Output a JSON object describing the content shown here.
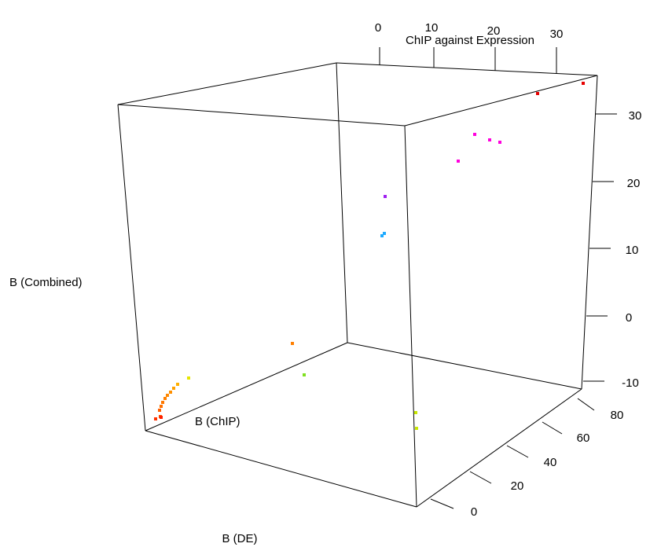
{
  "chart_data": {
    "type": "scatter",
    "title": "ChIP against Expression",
    "xlabel": "B (DE)",
    "ylabel": "B (Combined)",
    "zlabel": "B (ChIP)",
    "top_axis": {
      "ticks": [
        "0",
        "10",
        "20",
        "30"
      ]
    },
    "right_axis": {
      "ticks": [
        "30",
        "20",
        "10",
        "0",
        "-10"
      ]
    },
    "depth_axis": {
      "ticks": [
        "80",
        "60",
        "40",
        "20",
        "0"
      ]
    },
    "points": [
      {
        "label": "p1",
        "color": "#e60000"
      },
      {
        "label": "p2",
        "color": "#e60000"
      },
      {
        "label": "p3",
        "color": "#ff00dd"
      },
      {
        "label": "p4",
        "color": "#ff00dd"
      },
      {
        "label": "p5",
        "color": "#ff00dd"
      },
      {
        "label": "p6",
        "color": "#ff00dd"
      },
      {
        "label": "p7",
        "color": "#a020f0"
      },
      {
        "label": "p8",
        "color": "#1eaaff"
      },
      {
        "label": "p9",
        "color": "#1eaaff"
      },
      {
        "label": "p10",
        "color": "#ff7f00"
      },
      {
        "label": "p11",
        "color": "#80e020"
      },
      {
        "label": "p12",
        "color": "#c8e600"
      },
      {
        "label": "p13",
        "color": "#c8e600"
      },
      {
        "label": "p14",
        "color": "#e6e600"
      },
      {
        "label": "p15",
        "color": "#ffb000"
      },
      {
        "label": "p16",
        "color": "#ffa000"
      },
      {
        "label": "p17",
        "color": "#ff9000"
      },
      {
        "label": "p18",
        "color": "#ff8800"
      },
      {
        "label": "p19",
        "color": "#ff8000"
      },
      {
        "label": "p20",
        "color": "#ff7800"
      },
      {
        "label": "p21",
        "color": "#ff7000"
      },
      {
        "label": "p22",
        "color": "#ff6000"
      },
      {
        "label": "p23",
        "color": "#ff5000"
      },
      {
        "label": "p24",
        "color": "#ff3000"
      },
      {
        "label": "p25",
        "color": "#ff2000"
      }
    ]
  }
}
